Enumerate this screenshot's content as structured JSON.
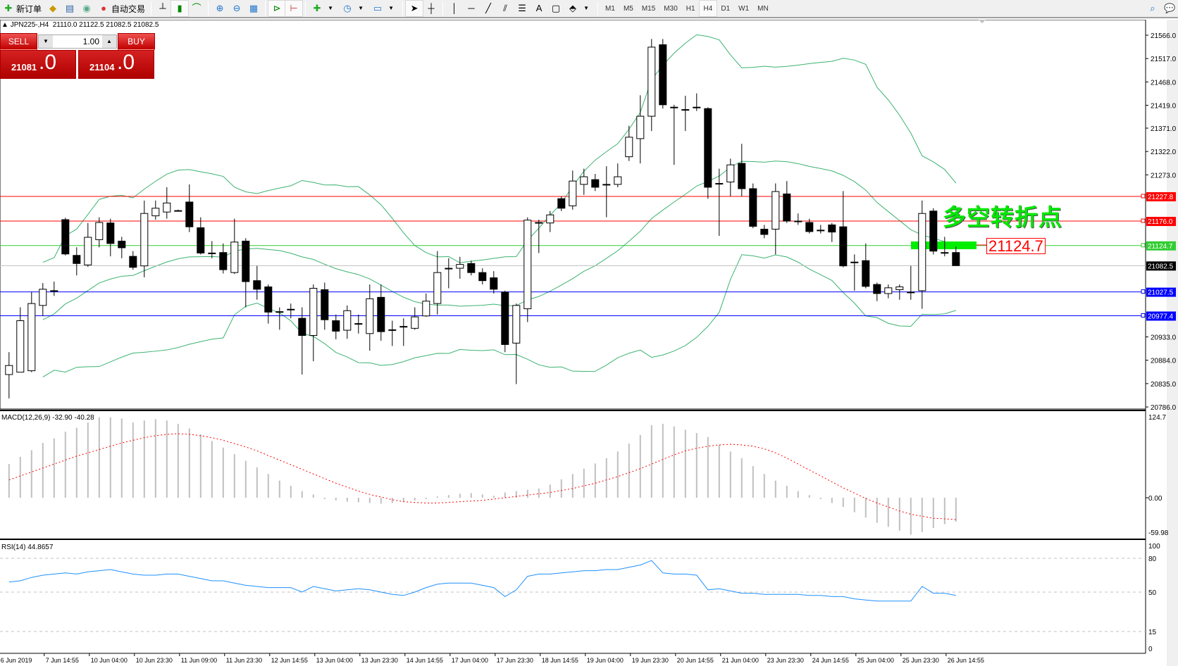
{
  "toolbar": {
    "new_order": "新订单",
    "auto_trading": "自动交易",
    "drawing_text": "A",
    "timeframes": [
      "M1",
      "M5",
      "M15",
      "M30",
      "H1",
      "H4",
      "D1",
      "W1",
      "MN"
    ],
    "active_timeframe": "H4"
  },
  "header": {
    "symbol": "JPN225-,H4",
    "ohlc": "21110.0 21122.5 21082.5 21082.5"
  },
  "trade_panel": {
    "sell_label": "SELL",
    "buy_label": "BUY",
    "lots": "1.00",
    "sell_price_main": "21081",
    "sell_price_frac": ".0",
    "buy_price_main": "21104",
    "buy_price_frac": ".0",
    "color": "#d42020"
  },
  "annotation": {
    "text": "多空转折点",
    "level_label": "21124.7",
    "color": "#00e800"
  },
  "price_axis": {
    "ticks": [
      "21566.0",
      "21517.0",
      "21468.0",
      "21419.0",
      "21371.0",
      "21322.0",
      "21273.0",
      "20933.0",
      "20884.0",
      "20835.0",
      "20786.0"
    ]
  },
  "levels": [
    {
      "price": 21227.8,
      "label": "21227.8",
      "color": "#ff0000"
    },
    {
      "price": 21176.0,
      "label": "21176.0",
      "color": "#ff0000"
    },
    {
      "price": 21124.7,
      "label": "21124.7",
      "color": "#32cd32"
    },
    {
      "price": 21082.5,
      "label": "21082.5",
      "color": "#c0c0c0",
      "bid": true
    },
    {
      "price": 21027.5,
      "label": "21027.5",
      "color": "#0000ff"
    },
    {
      "price": 20977.4,
      "label": "20977.4",
      "color": "#0000ff"
    }
  ],
  "time_axis": [
    "6 Jun 2019",
    "7 Jun 14:55",
    "10 Jun 04:00",
    "10 Jun 23:30",
    "11 Jun 09:00",
    "11 Jun 23:30",
    "12 Jun 14:55",
    "13 Jun 04:00",
    "13 Jun 23:30",
    "14 Jun 14:55",
    "17 Jun 04:00",
    "17 Jun 23:30",
    "18 Jun 14:55",
    "19 Jun 04:00",
    "19 Jun 23:30",
    "20 Jun 14:55",
    "21 Jun 04:00",
    "23 Jun 23:30",
    "24 Jun 14:55",
    "25 Jun 04:00",
    "25 Jun 23:30",
    "26 Jun 14:55"
  ],
  "macd": {
    "label": "MACD(12,26,9) -32.90 -40.28",
    "ticks": [
      "124.7",
      "0.00",
      "-59.98"
    ],
    "hist": [
      51,
      62,
      72,
      83,
      90,
      100,
      106,
      114,
      122,
      122,
      120,
      114,
      117,
      119,
      117,
      112,
      105,
      96,
      86,
      76,
      66,
      56,
      46,
      36,
      26,
      18,
      10,
      5,
      -2,
      -4,
      -6,
      -7,
      -8,
      -9,
      -8,
      -6,
      -4,
      -2,
      2,
      4,
      6,
      7,
      5,
      3,
      8,
      10,
      12,
      14,
      20,
      28,
      36,
      44,
      52,
      60,
      70,
      82,
      95,
      110,
      112,
      108,
      103,
      98,
      92,
      80,
      70,
      60,
      48,
      36,
      26,
      18,
      10,
      4,
      -2,
      -8,
      -14,
      -22,
      -30,
      -38,
      -44,
      -50,
      -56,
      -52,
      -46,
      -40,
      -36
    ],
    "signal": [
      27,
      33,
      39,
      45,
      51,
      57,
      63,
      68,
      73,
      78,
      83,
      87,
      91,
      94,
      96,
      97,
      96,
      94,
      91,
      87,
      82,
      77,
      71,
      64,
      57,
      50,
      43,
      36,
      29,
      22,
      16,
      10,
      5,
      1,
      -3,
      -6,
      -7,
      -8,
      -8,
      -7,
      -6,
      -5,
      -4,
      -2,
      0,
      2,
      4,
      6,
      8,
      11,
      14,
      18,
      22,
      27,
      32,
      38,
      44,
      51,
      58,
      65,
      71,
      75,
      78,
      80,
      81,
      80,
      78,
      74,
      68,
      60,
      51,
      42,
      33,
      24,
      15,
      7,
      -1,
      -8,
      -14,
      -20,
      -25,
      -28,
      -31,
      -32,
      -33
    ]
  },
  "rsi": {
    "label": "RSI(14) 44.8657",
    "ticks": [
      "100",
      "80",
      "50",
      "15",
      "0"
    ],
    "values": [
      59,
      60,
      63,
      65,
      66,
      67,
      66,
      68,
      69,
      70,
      68,
      66,
      65,
      65,
      66,
      66,
      64,
      62,
      60,
      60,
      58,
      56,
      55,
      54,
      54,
      54,
      50,
      55,
      53,
      51,
      52,
      53,
      52,
      50,
      48,
      47,
      50,
      54,
      57,
      58,
      58,
      58,
      56,
      54,
      46,
      52,
      64,
      66,
      66,
      67,
      68,
      69,
      69,
      70,
      70,
      72,
      74,
      78,
      67,
      66,
      66,
      65,
      52,
      53,
      51,
      49,
      49,
      48,
      48,
      48,
      48,
      47,
      47,
      46,
      46,
      44,
      43,
      42,
      42,
      42,
      42,
      55,
      49,
      49,
      47
    ]
  },
  "chart_data": {
    "type": "candlestick",
    "symbol": "JPN225-",
    "timeframe": "H4",
    "ylim": [
      20786,
      21566
    ],
    "ohlc": [
      [
        20854,
        20901,
        20804,
        20873
      ],
      [
        20859,
        20995,
        20859,
        20967
      ],
      [
        20862,
        21027,
        20859,
        21003
      ],
      [
        20999,
        21046,
        20977,
        21033
      ],
      [
        21030,
        21049,
        21019,
        21030
      ],
      [
        21179,
        21183,
        21104,
        21107
      ],
      [
        21104,
        21121,
        21062,
        21087
      ],
      [
        21084,
        21172,
        21080,
        21142
      ],
      [
        21137,
        21184,
        21121,
        21173
      ],
      [
        21172,
        21181,
        21102,
        21129
      ],
      [
        21134,
        21143,
        21098,
        21120
      ],
      [
        21102,
        21113,
        21074,
        21079
      ],
      [
        21082,
        21219,
        21058,
        21192
      ],
      [
        21187,
        21219,
        21179,
        21203
      ],
      [
        21195,
        21247,
        21181,
        21214
      ],
      [
        21198,
        21200,
        21197,
        21198
      ],
      [
        21216,
        21253,
        21153,
        21164
      ],
      [
        21162,
        21184,
        21106,
        21109
      ],
      [
        21109,
        21134,
        21098,
        21109
      ],
      [
        21110,
        21129,
        21066,
        21074
      ],
      [
        21068,
        21181,
        21065,
        21132
      ],
      [
        21134,
        21140,
        20995,
        21049
      ],
      [
        21051,
        21082,
        21011,
        21033
      ],
      [
        21038,
        21043,
        20961,
        20985
      ],
      [
        20986,
        20995,
        20948,
        20986
      ],
      [
        20991,
        21003,
        20972,
        20991
      ],
      [
        20972,
        20995,
        20854,
        20936
      ],
      [
        20936,
        21043,
        20882,
        21035
      ],
      [
        21032,
        21047,
        20948,
        20969
      ],
      [
        20967,
        20980,
        20928,
        20945
      ],
      [
        20947,
        20999,
        20929,
        20988
      ],
      [
        20961,
        20980,
        20940,
        20961
      ],
      [
        20940,
        21043,
        20904,
        21013
      ],
      [
        21016,
        21043,
        20925,
        20944
      ],
      [
        20948,
        20967,
        20914,
        20948
      ],
      [
        20955,
        20972,
        20914,
        20955
      ],
      [
        20951,
        20995,
        20948,
        20975
      ],
      [
        20977,
        21024,
        20975,
        21008
      ],
      [
        21003,
        21113,
        20980,
        21068
      ],
      [
        21077,
        21098,
        21035,
        21077
      ],
      [
        21077,
        21101,
        21055,
        21085
      ],
      [
        21087,
        21093,
        21062,
        21068
      ],
      [
        21068,
        21077,
        21043,
        21051
      ],
      [
        21057,
        21071,
        21024,
        21033
      ],
      [
        21027,
        21030,
        20901,
        20917
      ],
      [
        20920,
        21003,
        20834,
        20999
      ],
      [
        20992,
        21184,
        20964,
        21178
      ],
      [
        21173,
        21179,
        21109,
        21173
      ],
      [
        21172,
        21197,
        21153,
        21189
      ],
      [
        21223,
        21228,
        21197,
        21203
      ],
      [
        21208,
        21282,
        21200,
        21260
      ],
      [
        21253,
        21286,
        21231,
        21269
      ],
      [
        21263,
        21275,
        21239,
        21247
      ],
      [
        21253,
        21291,
        21184,
        21253
      ],
      [
        21253,
        21297,
        21247,
        21269
      ],
      [
        21311,
        21376,
        21302,
        21352
      ],
      [
        21349,
        21440,
        21297,
        21396
      ],
      [
        21396,
        21558,
        21365,
        21541
      ],
      [
        21546,
        21558,
        21412,
        21420
      ],
      [
        21415,
        21420,
        21294,
        21415
      ],
      [
        21410,
        21439,
        21365,
        21410
      ],
      [
        21415,
        21444,
        21407,
        21415
      ],
      [
        21412,
        21415,
        21223,
        21247
      ],
      [
        21255,
        21286,
        21145,
        21255
      ],
      [
        21258,
        21307,
        21228,
        21294
      ],
      [
        21297,
        21338,
        21228,
        21244
      ],
      [
        21244,
        21255,
        21161,
        21165
      ],
      [
        21159,
        21168,
        21140,
        21148
      ],
      [
        21159,
        21255,
        21106,
        21238
      ],
      [
        21233,
        21260,
        21172,
        21176
      ],
      [
        21176,
        21192,
        21168,
        21176
      ],
      [
        21173,
        21181,
        21150,
        21154
      ],
      [
        21157,
        21168,
        21150,
        21157
      ],
      [
        21168,
        21172,
        21132,
        21153
      ],
      [
        21164,
        21239,
        21079,
        21082
      ],
      [
        21090,
        21106,
        21030,
        21090
      ],
      [
        21093,
        21129,
        21035,
        21039
      ],
      [
        21043,
        21047,
        21008,
        21024
      ],
      [
        21024,
        21043,
        21014,
        21036
      ],
      [
        21032,
        21043,
        21011,
        21038
      ],
      [
        21027,
        21082,
        21011,
        21027
      ],
      [
        21030,
        21219,
        20992,
        21192
      ],
      [
        21197,
        21203,
        21106,
        21113
      ],
      [
        21110,
        21143,
        21102,
        21110
      ],
      [
        21110,
        21122.5,
        21082.5,
        21082.5
      ]
    ],
    "indicators": [
      "Bollinger Bands",
      "MACD(12,26,9)",
      "RSI(14)"
    ],
    "colors": {
      "bull": "#ffffff",
      "bear": "#000000",
      "bands": "#3cb371",
      "rsi": "#1e90ff",
      "macd_hist": "#c0c0c0",
      "macd_signal": "#ff0000"
    }
  }
}
